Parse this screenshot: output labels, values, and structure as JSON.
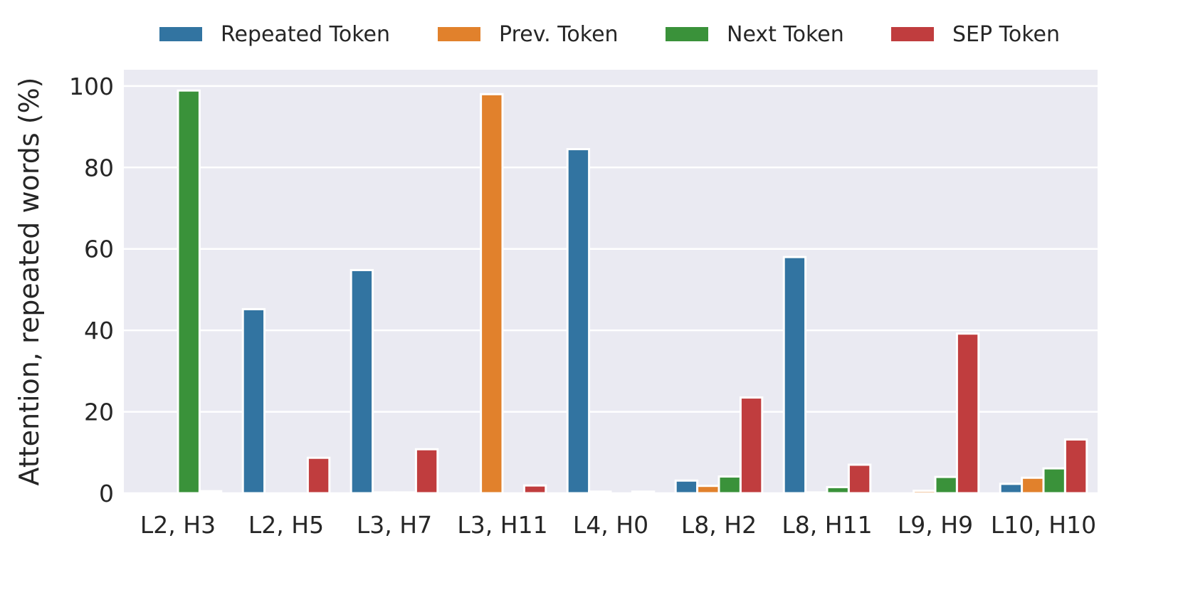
{
  "chart_data": {
    "type": "bar",
    "title": "",
    "xlabel": "",
    "ylabel": "Attention, repeated words (%)",
    "ylim": [
      0,
      104
    ],
    "yticks": [
      0,
      20,
      40,
      60,
      80,
      100
    ],
    "grid": true,
    "legend_position": "top",
    "categories": [
      "L2, H3",
      "L2, H5",
      "L3, H7",
      "L3, H11",
      "L4, H0",
      "L8, H2",
      "L8, H11",
      "L9, H9",
      "L10, H10"
    ],
    "series": [
      {
        "name": "Repeated Token",
        "color": "#3274a1",
        "values": [
          0.0,
          45.2,
          54.8,
          0.0,
          84.5,
          3.1,
          58.0,
          0.0,
          2.3
        ]
      },
      {
        "name": "Prev. Token",
        "color": "#e1812c",
        "values": [
          0.0,
          0.0,
          0.2,
          98.0,
          0.4,
          1.8,
          0.2,
          0.6,
          3.8
        ]
      },
      {
        "name": "Next Token",
        "color": "#3a923a",
        "values": [
          98.9,
          0.0,
          0.2,
          0.0,
          0.0,
          4.1,
          1.5,
          4.0,
          6.1
        ]
      },
      {
        "name": "SEP Token",
        "color": "#c03d3e",
        "values": [
          0.5,
          8.7,
          10.8,
          1.9,
          0.4,
          23.5,
          7.0,
          39.2,
          13.2
        ]
      }
    ]
  }
}
